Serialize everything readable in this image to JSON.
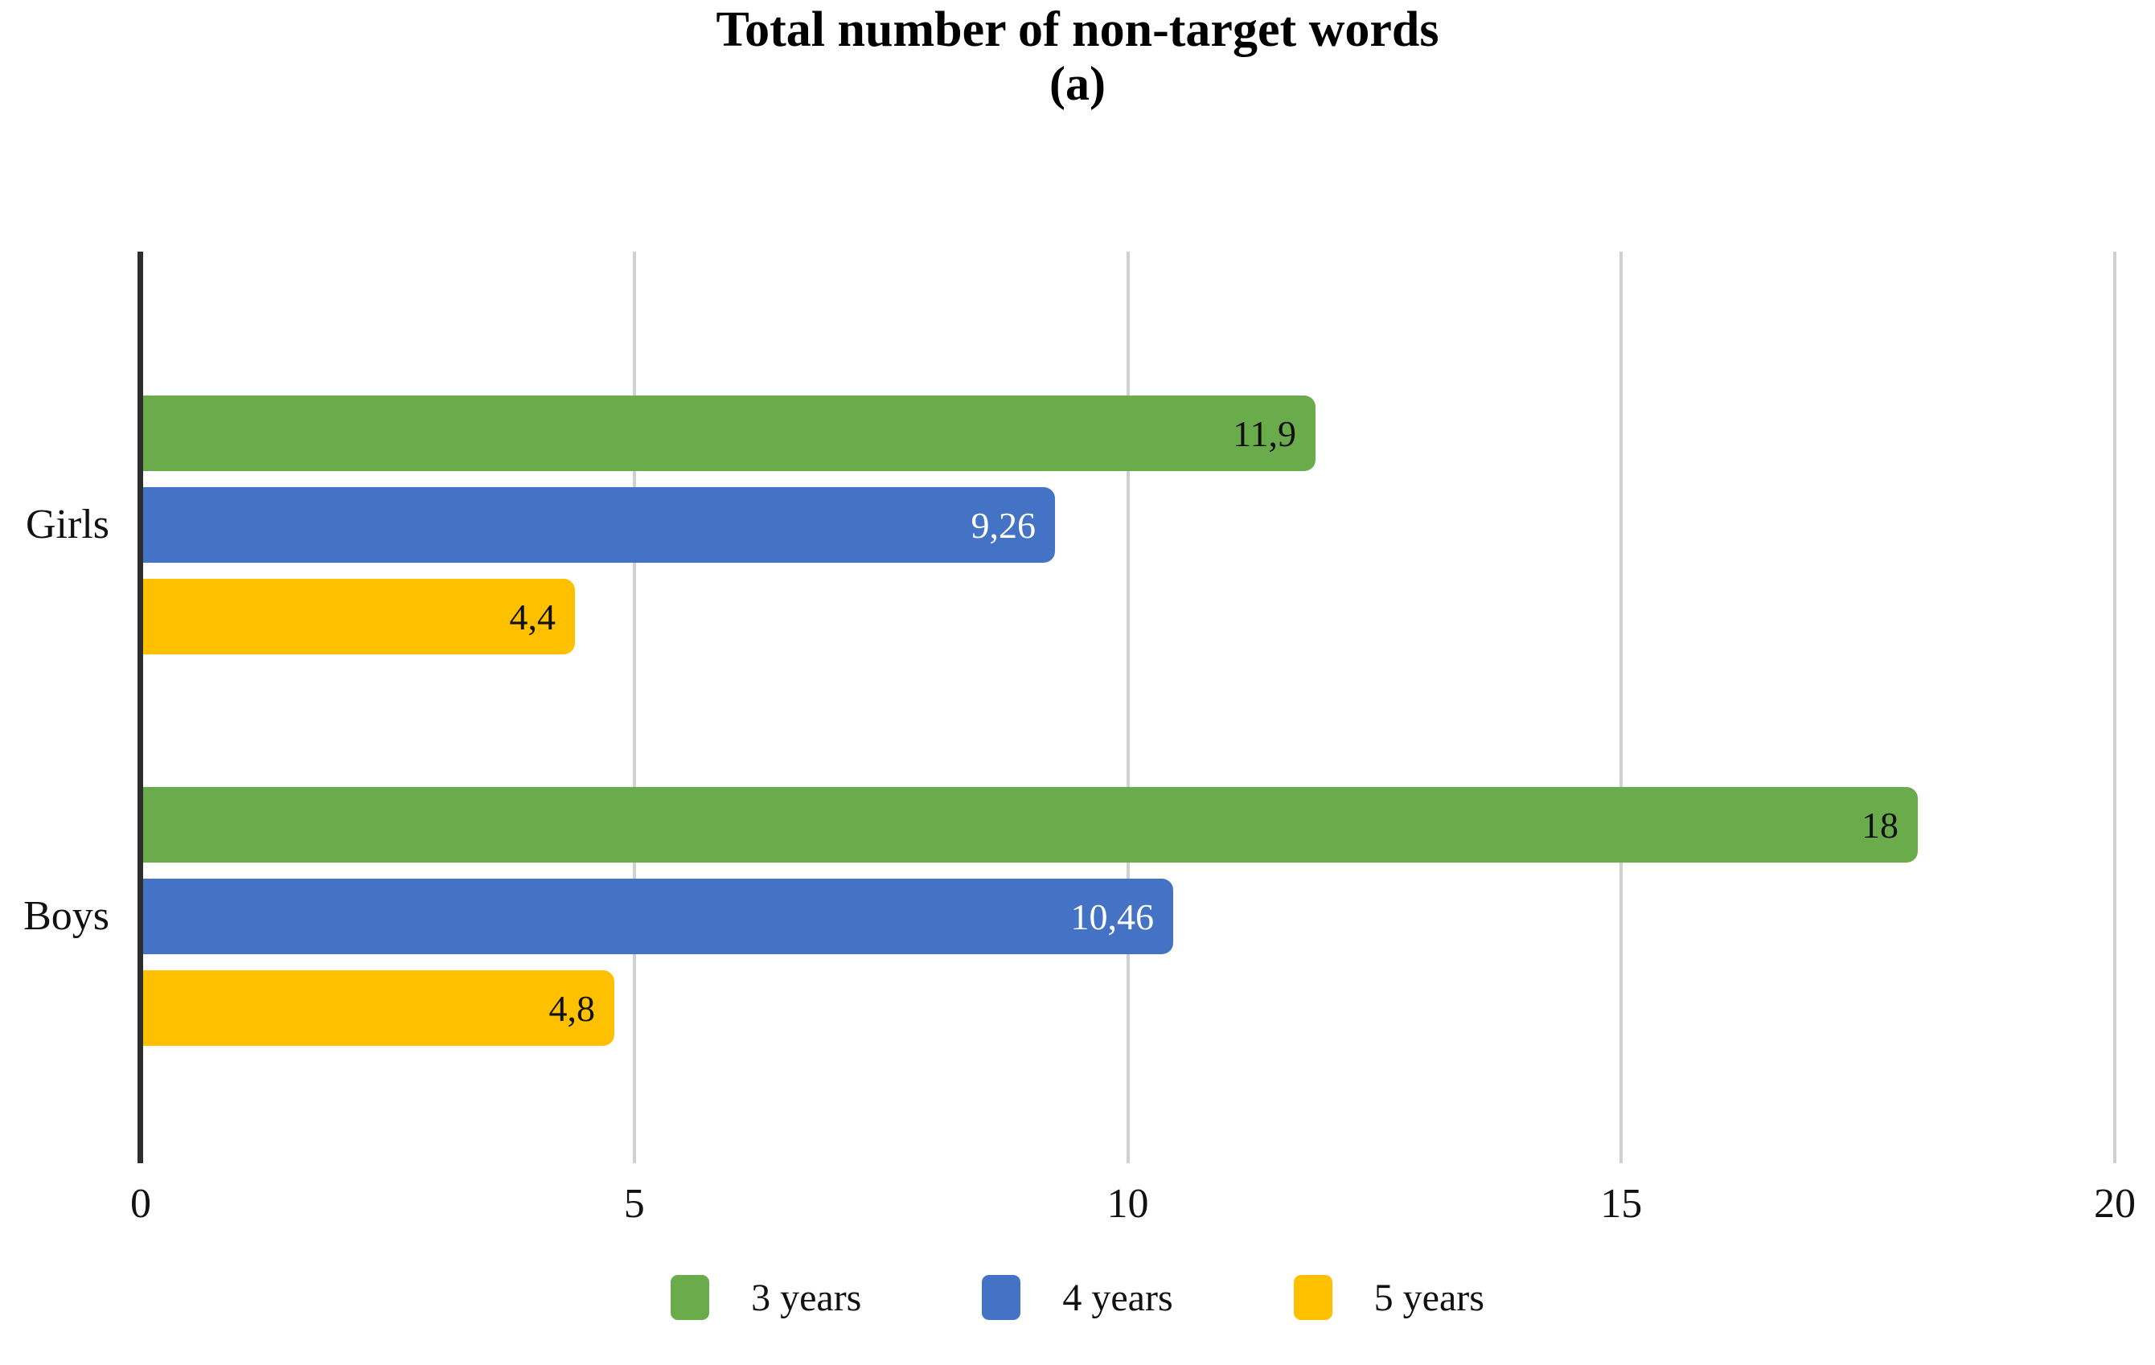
{
  "title": "Total number of non-target words",
  "subtitle": "(a)",
  "chart_data": {
    "type": "bar",
    "orientation": "horizontal",
    "title": "Total number of non-target words",
    "subtitle": "(a)",
    "categories": [
      "Girls",
      "Boys"
    ],
    "series": [
      {
        "name": "3 years",
        "color": "#6aab4b",
        "values": [
          11.9,
          18
        ],
        "value_labels": [
          "11,9",
          "18"
        ],
        "value_label_color": "#111111"
      },
      {
        "name": "4 years",
        "color": "#4473c5",
        "values": [
          9.26,
          10.46
        ],
        "value_labels": [
          "9,26",
          "10,46"
        ],
        "value_label_color": "#ffffff"
      },
      {
        "name": "5 years",
        "color": "#ffc000",
        "values": [
          4.4,
          4.8
        ],
        "value_labels": [
          "4,4",
          "4,8"
        ],
        "value_label_color": "#111111"
      }
    ],
    "x_axis": {
      "min": 0,
      "max": 20,
      "ticks": [
        0,
        5,
        10,
        15,
        20
      ],
      "tick_labels": [
        "0",
        "5",
        "10",
        "15",
        "20"
      ]
    },
    "grid": true,
    "legend_position": "bottom",
    "legend": [
      "3 years",
      "4 years",
      "5 years"
    ]
  },
  "colors": {
    "axis_line": "#2e2e2e",
    "gridline": "#d0d0d0",
    "text": "#111111",
    "background": "#ffffff"
  }
}
